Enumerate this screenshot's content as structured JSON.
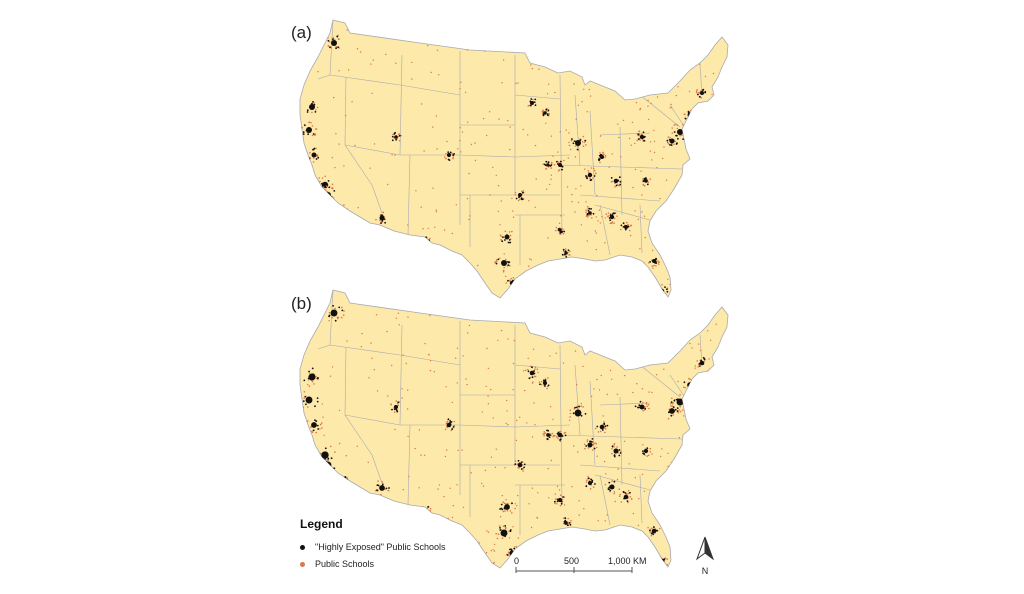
{
  "panels": [
    {
      "label": "(a)"
    },
    {
      "label": "(b)"
    }
  ],
  "legend": {
    "title": "Legend",
    "items": [
      {
        "label": "\"Highly Exposed\" Public Schools",
        "color": "#111111"
      },
      {
        "label": "Public Schools",
        "color": "#d9784a"
      }
    ]
  },
  "scale_bar": {
    "ticks": [
      "0",
      "500",
      "1,000 KM"
    ]
  },
  "north_arrow": {
    "label": "N"
  },
  "colors": {
    "land": "#fde9a9",
    "border": "#a9a9b0",
    "highly_exposed": "#111111",
    "public_school": "#d9784a"
  }
}
